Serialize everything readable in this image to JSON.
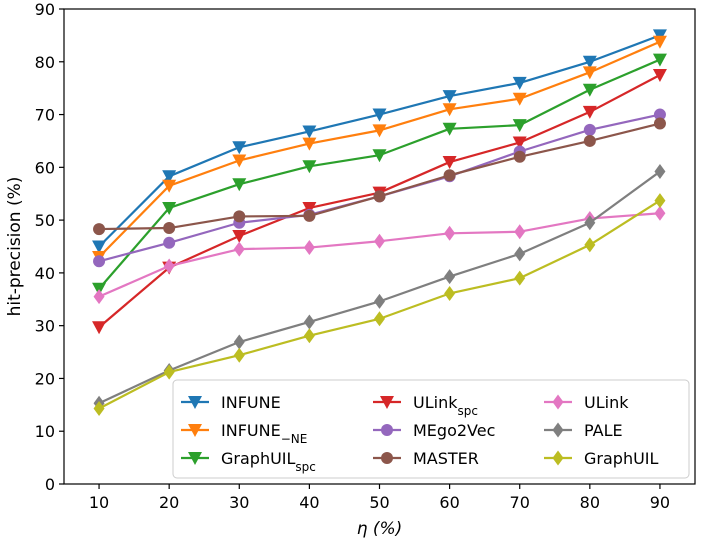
{
  "chart_data": {
    "type": "line",
    "title": "",
    "xlabel": "η (%)",
    "ylabel": "hit-precision (%)",
    "x": [
      10,
      20,
      30,
      40,
      50,
      60,
      70,
      80,
      90
    ],
    "xlim": [
      5,
      95
    ],
    "ylim": [
      0,
      90
    ],
    "xticks": [
      10,
      20,
      30,
      40,
      50,
      60,
      70,
      80,
      90
    ],
    "yticks": [
      0,
      10,
      20,
      30,
      40,
      50,
      60,
      70,
      80,
      90
    ],
    "grid": false,
    "legend_position": "lower-right",
    "series": [
      {
        "name": "INFUNE",
        "base": "INFUNE",
        "sub": "",
        "color": "#1f77b4",
        "marker": "triangle-down",
        "values": [
          45.0,
          58.3,
          63.8,
          66.8,
          70.0,
          73.5,
          76.0,
          80.0,
          85.0
        ]
      },
      {
        "name": "INFUNE_−NE",
        "base": "INFUNE",
        "sub": "−NE",
        "color": "#ff7f0e",
        "marker": "triangle-down",
        "values": [
          43.0,
          56.5,
          61.3,
          64.5,
          67.0,
          71.0,
          73.0,
          78.0,
          83.8
        ]
      },
      {
        "name": "GraphUIL_spc",
        "base": "GraphUIL",
        "sub": "spc",
        "color": "#2ca02c",
        "marker": "triangle-down",
        "values": [
          37.0,
          52.3,
          56.8,
          60.2,
          62.3,
          67.3,
          68.0,
          74.7,
          80.4
        ]
      },
      {
        "name": "ULink_spc",
        "base": "ULink",
        "sub": "spc",
        "color": "#d62728",
        "marker": "triangle-down",
        "values": [
          29.7,
          41.0,
          47.0,
          52.3,
          55.2,
          61.0,
          64.7,
          70.5,
          77.5
        ]
      },
      {
        "name": "MEgo2Vec",
        "base": "MEgo2Vec",
        "sub": "",
        "color": "#9467bd",
        "marker": "circle",
        "values": [
          42.2,
          45.7,
          49.5,
          51.0,
          54.5,
          58.3,
          63.0,
          67.1,
          70.0
        ]
      },
      {
        "name": "MASTER",
        "base": "MASTER",
        "sub": "",
        "color": "#8c564b",
        "marker": "circle",
        "values": [
          48.3,
          48.5,
          50.7,
          50.8,
          54.5,
          58.5,
          62.0,
          65.0,
          68.3
        ]
      },
      {
        "name": "ULink",
        "base": "ULink",
        "sub": "",
        "color": "#e377c2",
        "marker": "diamond",
        "values": [
          35.5,
          41.3,
          44.5,
          44.8,
          46.0,
          47.5,
          47.8,
          50.3,
          51.3
        ]
      },
      {
        "name": "PALE",
        "base": "PALE",
        "sub": "",
        "color": "#7f7f7f",
        "marker": "diamond",
        "values": [
          15.3,
          21.5,
          26.9,
          30.7,
          34.6,
          39.3,
          43.6,
          49.5,
          59.2
        ]
      },
      {
        "name": "GraphUIL",
        "base": "GraphUIL",
        "sub": "",
        "color": "#bcbd22",
        "marker": "diamond",
        "values": [
          14.3,
          21.2,
          24.4,
          28.1,
          31.3,
          36.1,
          39.0,
          45.3,
          53.7
        ]
      }
    ]
  }
}
